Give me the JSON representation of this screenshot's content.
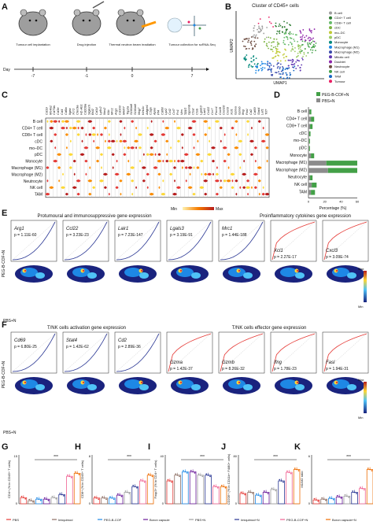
{
  "panel_labels": [
    "A",
    "B",
    "C",
    "D",
    "E",
    "F",
    "G",
    "H",
    "I",
    "J",
    "K"
  ],
  "panelA": {
    "steps": [
      "Tumour cell implantation",
      "Drug injection",
      "Thermal neutron beam irradiation",
      "Tumour collection for scRNA-Seq"
    ],
    "day_label": "Day",
    "days": [
      "-7",
      "-1",
      "0",
      "7"
    ]
  },
  "panelB": {
    "title": "Cluster of CD45+ cells",
    "xlabel": "UMAP1",
    "ylabel": "UMAP2",
    "legend": [
      {
        "name": "B cell",
        "color": "#9e9e9e"
      },
      {
        "name": "CD4+ T cell",
        "color": "#2e7d32"
      },
      {
        "name": "CD8+ T cell",
        "color": "#66bb6a"
      },
      {
        "name": "cDC",
        "color": "#7cb342"
      },
      {
        "name": "mo–DC",
        "color": "#c0ca33"
      },
      {
        "name": "pDC",
        "color": "#9ccc65"
      },
      {
        "name": "Monocyte",
        "color": "#00897b"
      },
      {
        "name": "Macrophage (M1)",
        "color": "#1e88e5"
      },
      {
        "name": "Macrophage (M2)",
        "color": "#3949ab"
      },
      {
        "name": "Mitotic cell",
        "color": "#5e35b1"
      },
      {
        "name": "Doublet",
        "color": "#8e24aa"
      },
      {
        "name": "Neutrocyte",
        "color": "#6d4c41"
      },
      {
        "name": "NK cell",
        "color": "#43a047"
      },
      {
        "name": "TAM",
        "color": "#1565c0"
      },
      {
        "name": "Tumour",
        "color": "#e91e63"
      }
    ]
  },
  "panelC": {
    "genes": [
      "Cd19",
      "Ms4a1",
      "Cd79a",
      "Cd3e",
      "Cd4",
      "Cd8a",
      "Itgax",
      "Xcr1",
      "Clec9a",
      "H2-Ab1",
      "Cd209a",
      "Siglech",
      "Bst2",
      "Cd14",
      "Ly6c2",
      "Nos2",
      "Il1b",
      "Mrc1",
      "Arg1",
      "Cd163",
      "Mki67",
      "Top2a",
      "S100a8",
      "S100a9",
      "Nkg7",
      "Klrb1c",
      "Adgre1",
      "C1qa",
      "Apoe",
      "Pf4",
      "Cd68",
      "Lyz2",
      "Ccl2",
      "Ccl7",
      "Fn1",
      "Vim",
      "Spp1",
      "Gpnmb",
      "Ctsd",
      "Ctsb",
      "Lgals3",
      "Lair1",
      "Ccl22",
      "Ccr7",
      "Fscn1",
      "Cxcl9",
      "Cxcl10",
      "Cxcl3",
      "Xcl1",
      "Gzma",
      "Gzmb",
      "Ifng",
      "Fasl",
      "Cd2",
      "Cd69",
      "Stat4",
      "Lef1",
      "Tcf7"
    ],
    "rows": [
      "B cell",
      "CD4+ T cell",
      "CD8+ T cell",
      "cDC",
      "mo–DC",
      "pDC",
      "Monocyte",
      "Macrophage (M1)",
      "Macrophage (M2)",
      "Neutrocyte",
      "NK cell",
      "TAM"
    ],
    "scale_min": "Min",
    "scale_max": "Max"
  },
  "panelD": {
    "legend": [
      "PEG-B-COF+N",
      "PBS+N"
    ],
    "xlabel": "Percentage (%)",
    "ticks": [
      "0",
      "20",
      "40",
      "60"
    ],
    "chart_data": {
      "type": "bar",
      "categories": [
        "B cell",
        "CD4+ T cell",
        "CD8+ T cell",
        "cDC",
        "mo–DC",
        "pDC",
        "Monocyte",
        "Macrophage (M1)",
        "Macrophage (M2)",
        "Neutrocyte",
        "NK cell",
        "TAM"
      ],
      "series": [
        {
          "name": "PEG-B-COF+N",
          "values": [
            2,
            4,
            3,
            1.5,
            1,
            1,
            4,
            38,
            36,
            3,
            6,
            5
          ]
        },
        {
          "name": "PBS+N",
          "values": [
            1.5,
            3,
            2,
            1,
            0.8,
            0.8,
            3,
            22,
            24,
            2,
            4,
            3
          ]
        }
      ],
      "xlim": [
        0,
        60
      ]
    }
  },
  "panelE": {
    "title_left": "Protumoural and immunosuppressive gene expression",
    "title_right": "Proinflammatory cytokines gene expression",
    "row_top": "PEG-B-COF+N",
    "row_bottom": "PBS+N",
    "plots": [
      {
        "gene": "Arg1",
        "p": "p = 1.11E-60"
      },
      {
        "gene": "Ccl22",
        "p": "p = 3.23E-23"
      },
      {
        "gene": "Lair1",
        "p": "p = 7.23E-147"
      },
      {
        "gene": "Lgals3",
        "p": "p = 3.19E-91"
      },
      {
        "gene": "Mrc1",
        "p": "p = 1.44E-188"
      },
      {
        "gene": "Xcl1",
        "p": "p = 2.27E-17"
      },
      {
        "gene": "Cxcl3",
        "p": "p = 3.09E-74"
      }
    ],
    "scale_max": "Max",
    "scale_min": "Min"
  },
  "panelF": {
    "title_left": "T/NK cells activation gene expression",
    "title_right": "T/NK cells effector gene expression",
    "row_top": "PEG-B-COF+N",
    "row_bottom": "PBS+N",
    "plots": [
      {
        "gene": "Cd69",
        "p": "p = 6.80E-25"
      },
      {
        "gene": "Stat4",
        "p": "p = 1.42E-62"
      },
      {
        "gene": "Cd2",
        "p": "p = 2.89E-36"
      },
      {
        "gene": "Gzma",
        "p": "p = 1.42E-37"
      },
      {
        "gene": "Gzmb",
        "p": "p = 8.26E-32"
      },
      {
        "gene": "Ifng",
        "p": "p = 1.78E-23"
      },
      {
        "gene": "Fasl",
        "p": "p = 1.94E-31"
      }
    ],
    "scale_max": "Max",
    "scale_min": "Min"
  },
  "bottom": {
    "groups": [
      "PBS",
      "Imiquimod",
      "PEG-B-COF",
      "Boron capsule",
      "PBS+N",
      "Imiquimod+N",
      "PEG-B-COF+N",
      "Boron capsule+N"
    ],
    "colors": [
      "#e53935",
      "#8d6e63",
      "#1e88e5",
      "#6a1b9a",
      "#9e9e9e",
      "#283593",
      "#f06292",
      "#ef6c00"
    ],
    "panels": [
      {
        "label": "G",
        "ylabel": "CD4+ (% in CD45+ T cells)",
        "ymax": "15",
        "values": [
          2,
          1,
          1.5,
          1.5,
          2,
          3,
          9,
          10
        ]
      },
      {
        "label": "H",
        "ylabel": "CD8+ (% in CD45+ T cells)",
        "ymax": "8",
        "values": [
          1,
          1,
          1,
          1.5,
          2,
          3,
          4,
          5
        ]
      },
      {
        "label": "I",
        "ylabel": "Foxp3+ (% in CD4+ T cells)",
        "ymax": "40",
        "values": [
          20,
          25,
          28,
          28,
          25,
          25,
          15,
          15
        ]
      },
      {
        "label": "J",
        "ylabel": "CD206+ (% in CD11b+ F4/80+ cells)",
        "ymax": "80",
        "values": [
          18,
          20,
          15,
          20,
          25,
          40,
          55,
          60
        ]
      },
      {
        "label": "K",
        "ylabel": "M1/M2 ratio",
        "ymax": "6",
        "values": [
          0.5,
          0.6,
          0.7,
          0.9,
          1,
          1.5,
          2,
          4.5
        ]
      }
    ],
    "significance": "***",
    "significance2": "**"
  }
}
